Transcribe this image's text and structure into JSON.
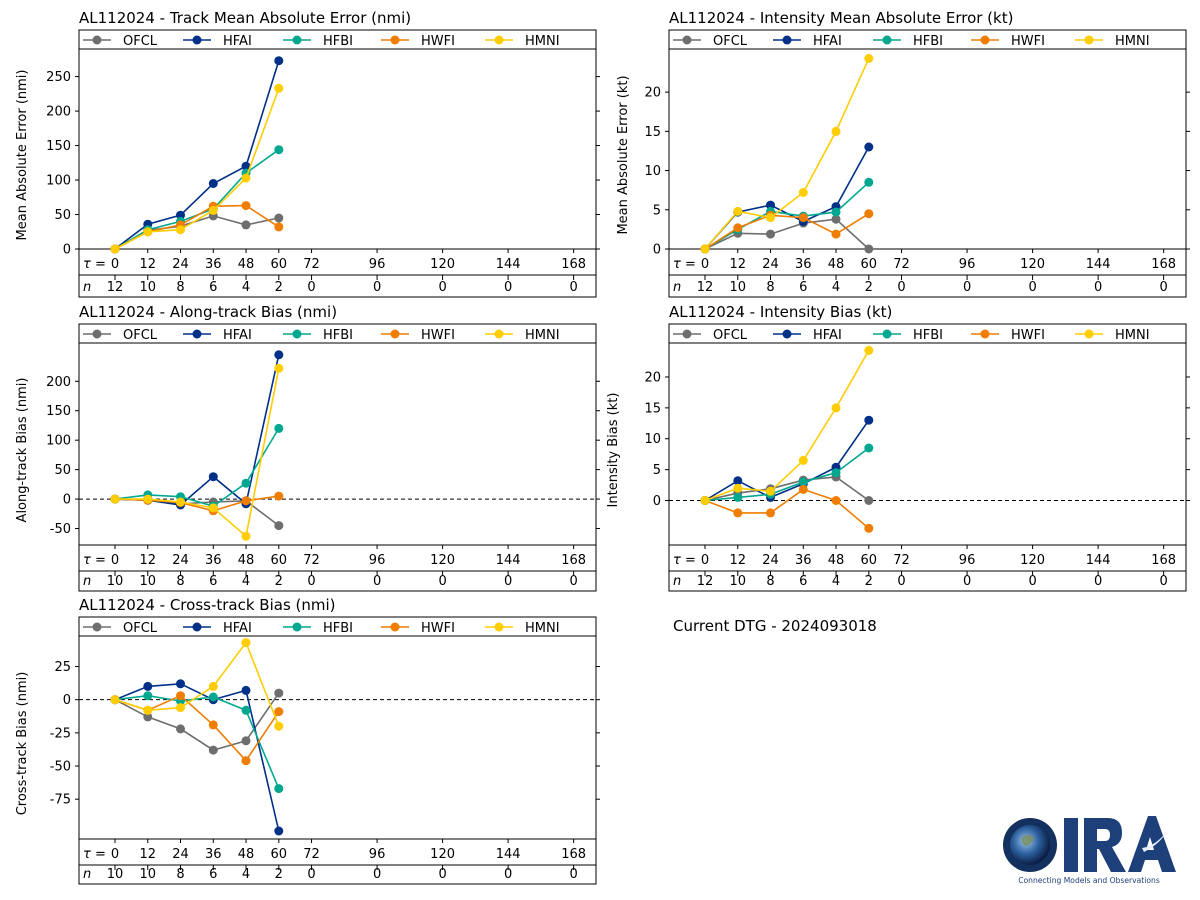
{
  "footer": {
    "current_dtg": "Current DTG - 2024093018"
  },
  "logo": {
    "text": "CIRA",
    "tagline": "Connecting Models and Observations"
  },
  "colors": {
    "OFCL": "#6e6e6e",
    "HFAI": "#003087",
    "HFBI": "#00a88f",
    "HWFI": "#ef7d00",
    "HMNI": "#ffcd00"
  },
  "chart_data": [
    {
      "id": "track-mae",
      "type": "line",
      "title": "AL112024 - Track Mean Absolute Error (nmi)",
      "ylabel": "Mean Absolute Error (nmi)",
      "ylim": [
        0,
        290
      ],
      "yticks": [
        0,
        50,
        100,
        150,
        200,
        250
      ],
      "zero_line": false,
      "legend": [
        "OFCL",
        "HFAI",
        "HFBI",
        "HWFI",
        "HMNI"
      ],
      "tau": [
        0,
        12,
        24,
        36,
        48,
        60,
        72,
        96,
        120,
        144,
        168
      ],
      "n": [
        12,
        10,
        8,
        6,
        4,
        2,
        0,
        0,
        0,
        0,
        0
      ],
      "series": [
        {
          "name": "OFCL",
          "x": [
            0,
            12,
            24,
            36,
            48,
            60
          ],
          "values": [
            0,
            27,
            33,
            48,
            35,
            45
          ]
        },
        {
          "name": "HFAI",
          "x": [
            0,
            12,
            24,
            36,
            48,
            60
          ],
          "values": [
            0,
            36,
            49,
            95,
            120,
            273
          ]
        },
        {
          "name": "HFBI",
          "x": [
            0,
            12,
            24,
            36,
            48,
            60
          ],
          "values": [
            0,
            28,
            40,
            58,
            110,
            144
          ]
        },
        {
          "name": "HWFI",
          "x": [
            0,
            12,
            24,
            36,
            48,
            60
          ],
          "values": [
            0,
            25,
            35,
            62,
            63,
            32
          ]
        },
        {
          "name": "HMNI",
          "x": [
            0,
            12,
            24,
            36,
            48,
            60
          ],
          "values": [
            0,
            25,
            28,
            56,
            103,
            233
          ]
        }
      ]
    },
    {
      "id": "intensity-mae",
      "type": "line",
      "title": "AL112024 - Intensity Mean Absolute Error (kt)",
      "ylabel": "Mean Absolute Error (kt)",
      "ylim": [
        0,
        25.5
      ],
      "yticks": [
        0,
        5,
        10,
        15,
        20
      ],
      "zero_line": false,
      "legend": [
        "OFCL",
        "HFAI",
        "HFBI",
        "HWFI",
        "HMNI"
      ],
      "tau": [
        0,
        12,
        24,
        36,
        48,
        60,
        72,
        96,
        120,
        144,
        168
      ],
      "n": [
        12,
        10,
        8,
        6,
        4,
        2,
        0,
        0,
        0,
        0,
        0
      ],
      "series": [
        {
          "name": "OFCL",
          "x": [
            0,
            12,
            24,
            36,
            48,
            60
          ],
          "values": [
            0,
            2.0,
            1.9,
            3.3,
            3.8,
            0
          ]
        },
        {
          "name": "HFAI",
          "x": [
            0,
            12,
            24,
            36,
            48,
            60
          ],
          "values": [
            0,
            4.7,
            5.6,
            3.5,
            5.4,
            13.0
          ]
        },
        {
          "name": "HFBI",
          "x": [
            0,
            12,
            24,
            36,
            48,
            60
          ],
          "values": [
            0,
            2.5,
            4.8,
            4.2,
            4.7,
            8.5
          ]
        },
        {
          "name": "HWFI",
          "x": [
            0,
            12,
            24,
            36,
            48,
            60
          ],
          "values": [
            0,
            2.7,
            4.3,
            4.0,
            1.9,
            4.5
          ]
        },
        {
          "name": "HMNI",
          "x": [
            0,
            12,
            24,
            36,
            48,
            60
          ],
          "values": [
            0,
            4.8,
            4.0,
            7.2,
            15.0,
            24.3
          ]
        }
      ]
    },
    {
      "id": "along-track-bias",
      "type": "line",
      "title": "AL112024 - Along-track Bias (nmi)",
      "ylabel": "Along-track Bias (nmi)",
      "ylim": [
        -78,
        265
      ],
      "yticks": [
        -50,
        0,
        50,
        100,
        150,
        200
      ],
      "zero_line": true,
      "legend": [
        "OFCL",
        "HFAI",
        "HFBI",
        "HWFI",
        "HMNI"
      ],
      "tau": [
        0,
        12,
        24,
        36,
        48,
        60,
        72,
        96,
        120,
        144,
        168
      ],
      "n": [
        10,
        10,
        8,
        6,
        4,
        2,
        0,
        0,
        0,
        0,
        0
      ],
      "series": [
        {
          "name": "OFCL",
          "x": [
            0,
            12,
            24,
            36,
            48,
            60
          ],
          "values": [
            0,
            -2,
            -8,
            -5,
            -3,
            -45
          ]
        },
        {
          "name": "HFAI",
          "x": [
            0,
            12,
            24,
            36,
            48,
            60
          ],
          "values": [
            0,
            -2,
            -10,
            38,
            -8,
            245
          ]
        },
        {
          "name": "HFBI",
          "x": [
            0,
            12,
            24,
            36,
            48,
            60
          ],
          "values": [
            0,
            7,
            4,
            -12,
            27,
            120
          ]
        },
        {
          "name": "HWFI",
          "x": [
            0,
            12,
            24,
            36,
            48,
            60
          ],
          "values": [
            0,
            -2,
            -6,
            -20,
            -3,
            5
          ]
        },
        {
          "name": "HMNI",
          "x": [
            0,
            12,
            24,
            36,
            48,
            60
          ],
          "values": [
            0,
            0,
            -5,
            -15,
            -63,
            222
          ]
        }
      ]
    },
    {
      "id": "intensity-bias",
      "type": "line",
      "title": "AL112024 - Intensity Bias (kt)",
      "ylabel": "Intensity Bias (kt)",
      "ylim": [
        -7.2,
        25.5
      ],
      "yticks": [
        0,
        5,
        10,
        15,
        20
      ],
      "zero_line": true,
      "legend": [
        "OFCL",
        "HFAI",
        "HFBI",
        "HWFI",
        "HMNI"
      ],
      "tau": [
        0,
        12,
        24,
        36,
        48,
        60,
        72,
        96,
        120,
        144,
        168
      ],
      "n": [
        12,
        10,
        8,
        6,
        4,
        2,
        0,
        0,
        0,
        0,
        0
      ],
      "series": [
        {
          "name": "OFCL",
          "x": [
            0,
            12,
            24,
            36,
            48,
            60
          ],
          "values": [
            0,
            1.2,
            1.9,
            3.3,
            3.8,
            0
          ]
        },
        {
          "name": "HFAI",
          "x": [
            0,
            12,
            24,
            36,
            48,
            60
          ],
          "values": [
            0,
            3.2,
            0.5,
            2.7,
            5.4,
            13.0
          ]
        },
        {
          "name": "HFBI",
          "x": [
            0,
            12,
            24,
            36,
            48,
            60
          ],
          "values": [
            0,
            0.5,
            1.0,
            3.0,
            4.5,
            8.5
          ]
        },
        {
          "name": "HWFI",
          "x": [
            0,
            12,
            24,
            36,
            48,
            60
          ],
          "values": [
            0,
            -2.0,
            -2.0,
            1.8,
            0,
            -4.5
          ]
        },
        {
          "name": "HMNI",
          "x": [
            0,
            12,
            24,
            36,
            48,
            60
          ],
          "values": [
            0,
            2.0,
            1.5,
            6.5,
            15.0,
            24.3
          ]
        }
      ]
    },
    {
      "id": "cross-track-bias",
      "type": "line",
      "title": "AL112024 - Cross-track Bias (nmi)",
      "ylabel": "Cross-track Bias (nmi)",
      "ylim": [
        -105,
        48
      ],
      "yticks": [
        -75,
        -50,
        -25,
        0,
        25
      ],
      "zero_line": true,
      "legend": [
        "OFCL",
        "HFAI",
        "HFBI",
        "HWFI",
        "HMNI"
      ],
      "tau": [
        0,
        12,
        24,
        36,
        48,
        60,
        72,
        96,
        120,
        144,
        168
      ],
      "n": [
        10,
        10,
        8,
        6,
        4,
        2,
        0,
        0,
        0,
        0,
        0
      ],
      "series": [
        {
          "name": "OFCL",
          "x": [
            0,
            12,
            24,
            36,
            48,
            60
          ],
          "values": [
            0,
            -13,
            -22,
            -38,
            -31,
            5
          ]
        },
        {
          "name": "HFAI",
          "x": [
            0,
            12,
            24,
            36,
            48,
            60
          ],
          "values": [
            0,
            10,
            12,
            0,
            7,
            -99
          ]
        },
        {
          "name": "HFBI",
          "x": [
            0,
            12,
            24,
            36,
            48,
            60
          ],
          "values": [
            0,
            3,
            -1,
            2,
            -8,
            -67
          ]
        },
        {
          "name": "HWFI",
          "x": [
            0,
            12,
            24,
            36,
            48,
            60
          ],
          "values": [
            0,
            -8,
            3,
            -19,
            -46,
            -9
          ]
        },
        {
          "name": "HMNI",
          "x": [
            0,
            12,
            24,
            36,
            48,
            60
          ],
          "values": [
            0,
            -8,
            -6,
            10,
            43,
            -20
          ]
        }
      ]
    }
  ]
}
